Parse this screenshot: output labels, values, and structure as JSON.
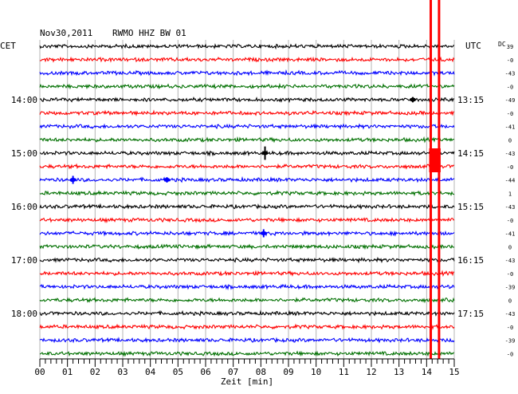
{
  "header": {
    "date": "Nov30,2011",
    "station": "RWMO HHZ BW 01"
  },
  "left_zone_label": "CET",
  "right_zone_label": "UTC",
  "dc_label": "DC",
  "chart_data": {
    "type": "line",
    "title": "",
    "xlabel": "Zeit [min]",
    "ylabel": "",
    "xlim": [
      0,
      15
    ],
    "x_ticks": [
      "00",
      "01",
      "02",
      "03",
      "04",
      "05",
      "06",
      "07",
      "08",
      "09",
      "10",
      "11",
      "12",
      "13",
      "14",
      "15"
    ],
    "row_count": 24,
    "row_minutes": 15,
    "trace_colors": [
      "#000000",
      "#ff0000",
      "#0000ff",
      "#007000"
    ],
    "grid": true,
    "left_hour_labels": [
      {
        "row": 4,
        "label": "14:00"
      },
      {
        "row": 8,
        "label": "15:00"
      },
      {
        "row": 12,
        "label": "16:00"
      },
      {
        "row": 16,
        "label": "17:00"
      },
      {
        "row": 20,
        "label": "18:00"
      }
    ],
    "right_hour_labels": [
      {
        "row": 4,
        "label": "13:15"
      },
      {
        "row": 8,
        "label": "14:15"
      },
      {
        "row": 12,
        "label": "15:15"
      },
      {
        "row": 16,
        "label": "16:15"
      },
      {
        "row": 20,
        "label": "17:15"
      }
    ],
    "dc_offsets": [
      "39",
      "-0",
      "-43",
      "-0",
      "-49",
      "-0",
      "-41",
      "0",
      "-43",
      "-0",
      "-44",
      "1",
      "-43",
      "-0",
      "-41",
      "0",
      "-43",
      "-0",
      "-39",
      "0",
      "-43",
      "-0",
      "-39",
      "-0"
    ],
    "events": [
      {
        "row": 8,
        "minute": 8.15,
        "amplitude": 0.5
      },
      {
        "row": 10,
        "minute": 1.2,
        "amplitude": 0.3
      },
      {
        "row": 10,
        "minute": 4.6,
        "amplitude": 0.2
      },
      {
        "row": 14,
        "minute": 8.1,
        "amplitude": 0.3
      },
      {
        "row": 4,
        "minute": 13.5,
        "amplitude": 0.2
      }
    ],
    "clipped_event": {
      "minute_start": 14.15,
      "minute_end": 14.45,
      "color": "#ff0000"
    }
  }
}
